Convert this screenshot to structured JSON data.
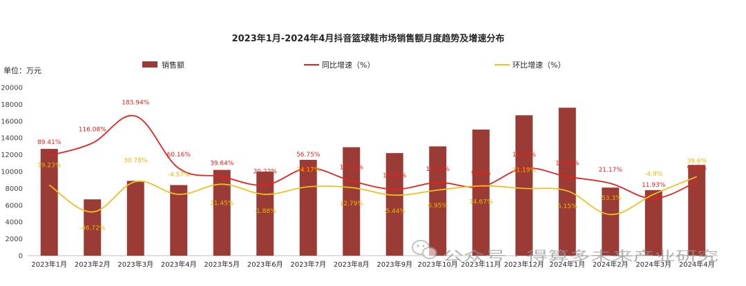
{
  "chart_data": {
    "type": "bar",
    "title": "2023年1月-2024年4月抖音篮球鞋市场销售额月度趋势及增速分布",
    "unit_label": "单位：万元",
    "categories": [
      "2023年1月",
      "2023年2月",
      "2023年3月",
      "2023年4月",
      "2023年5月",
      "2023年6月",
      "2023年7月",
      "2023年8月",
      "2023年9月",
      "2023年10月",
      "2023年11月",
      "2023年12月",
      "2024年1月",
      "2024年2月",
      "2024年3月",
      "2024年4月"
    ],
    "ylim": [
      0,
      20000
    ],
    "yticks": [
      "0",
      "2000",
      "4000",
      "6000",
      "8000",
      "10000",
      "12000",
      "14000",
      "16000",
      "18000",
      "20000"
    ],
    "legend_position": "top",
    "series": [
      {
        "name": "销售额",
        "kind": "bar",
        "color": "#9b3b35",
        "values": [
          12700,
          6700,
          8900,
          8400,
          10200,
          10000,
          11400,
          12900,
          12200,
          13000,
          15000,
          16700,
          17600,
          8100,
          7800,
          10800
        ]
      },
      {
        "name": "同比增速（%）",
        "kind": "line",
        "color": "#e8201c",
        "values": [
          11900,
          13400,
          16600,
          10400,
          9400,
          8400,
          10400,
          8900,
          7900,
          8700,
          8200,
          10400,
          9400,
          8600,
          6800,
          8800
        ],
        "labels": [
          "89.41%",
          "116.08%",
          "183.94%",
          "60.16%",
          "39.64%",
          "20.22%",
          "56.75%",
          "17.05%",
          "10.04%",
          "16.27%",
          "9.68%",
          "10.07%",
          "10.43%",
          "21.17%",
          "11.93%",
          "9.34%"
        ]
      },
      {
        "name": "环比增速（%）",
        "kind": "line",
        "color": "#f0c020",
        "values": [
          8400,
          5200,
          8800,
          7300,
          8500,
          7300,
          8200,
          8100,
          7200,
          7800,
          8300,
          8000,
          7700,
          4900,
          7300,
          9400
        ],
        "labels": [
          "19.23%",
          "-46.72%",
          "30.78%",
          "-4.57%",
          "21.45%",
          "-1.88%",
          "14.17%",
          "12.79%",
          "-5.44%",
          "6.95%",
          "14.67%",
          "11.19%",
          "5.15%",
          "-53.3%",
          "-4.9%",
          "39.6%"
        ]
      }
    ]
  },
  "watermark": {
    "icon": "wechat-icon",
    "text": "公众号 · 得算多未来产业研究"
  }
}
